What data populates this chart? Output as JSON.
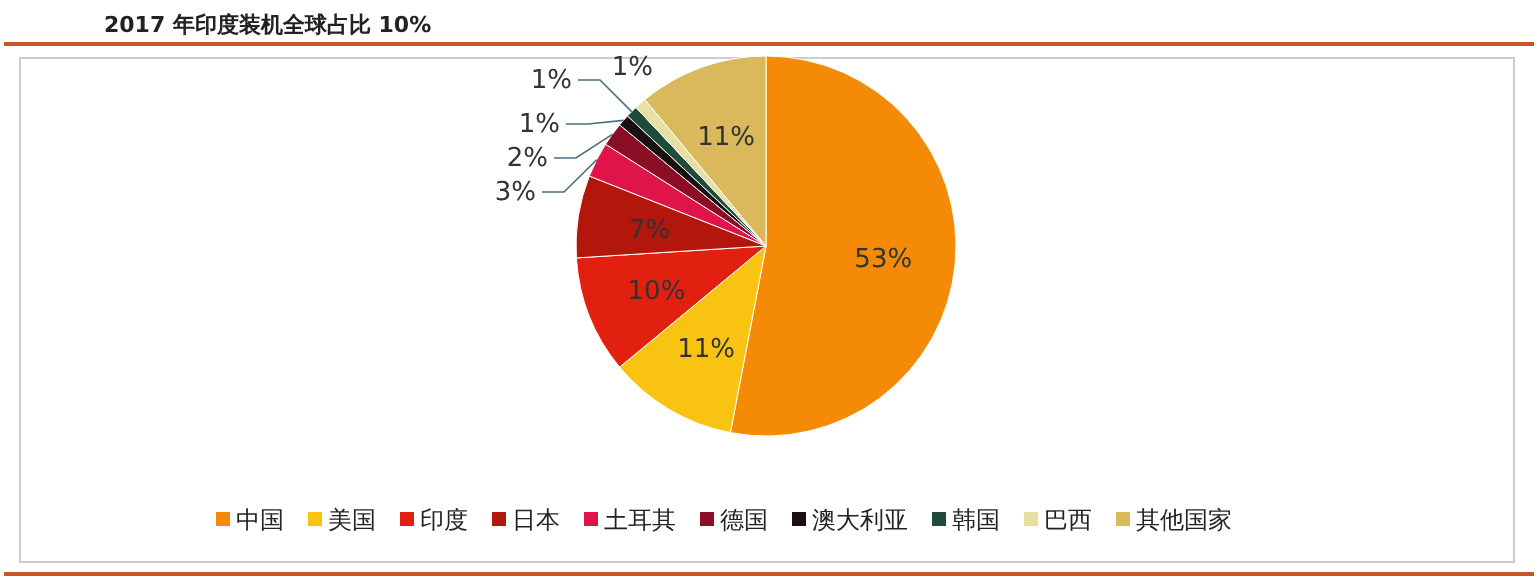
{
  "chart_data": {
    "type": "pie",
    "title": "2017 年印度装机全球占比 10%",
    "categories": [
      "中国",
      "美国",
      "印度",
      "日本",
      "土耳其",
      "德国",
      "澳大利亚",
      "韩国",
      "巴西",
      "其他国家"
    ],
    "values": [
      53,
      11,
      10,
      7,
      3,
      2,
      1,
      1,
      1,
      11
    ],
    "colors": [
      "#f58a07",
      "#f9c411",
      "#e2200f",
      "#b3170b",
      "#e0144a",
      "#8c0d26",
      "#1a1010",
      "#1d4d3a",
      "#e8dfa3",
      "#d9b95c"
    ],
    "value_labels": [
      "53%",
      "11%",
      "10%",
      "7%",
      "3%",
      "2%",
      "1%",
      "1%",
      "1%",
      "11%"
    ],
    "legend": "bottom"
  }
}
